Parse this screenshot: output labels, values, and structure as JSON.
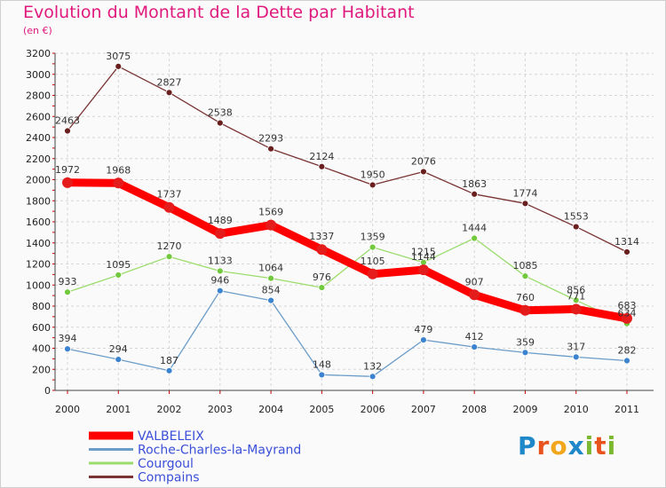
{
  "header": {
    "title": "Evolution du Montant de la Dette par Habitant",
    "subtitle": "(en €)"
  },
  "brand": {
    "text": "Proxiti",
    "letters": [
      "P",
      "r",
      "o",
      "x",
      "i",
      "t",
      "i"
    ],
    "colors": [
      "#1e88c8",
      "#e8531d",
      "#f2a61c",
      "#1e88c8",
      "#7cb82f",
      "#e8531d",
      "#7cb82f"
    ]
  },
  "chart_data": {
    "type": "line",
    "title": "Evolution du Montant de la Dette par Habitant",
    "subtitle": "(en €)",
    "xlabel": "",
    "ylabel": "",
    "x": [
      "2000",
      "2001",
      "2002",
      "2003",
      "2004",
      "2005",
      "2006",
      "2007",
      "2008",
      "2009",
      "2010",
      "2011"
    ],
    "ylim": [
      0,
      3200
    ],
    "yticks": [
      0,
      200,
      400,
      600,
      800,
      1000,
      1200,
      1400,
      1600,
      1800,
      2000,
      2200,
      2400,
      2600,
      2800,
      3000,
      3200
    ],
    "grid": true,
    "legend_position": "bottom-left",
    "series": [
      {
        "name": "VALBELEIX",
        "color": "#ff0000",
        "marker": "#e51c1c",
        "width": 9,
        "radius": 6,
        "values": [
          1972,
          1968,
          1737,
          1489,
          1569,
          1337,
          1105,
          1144,
          907,
          760,
          771,
          683
        ]
      },
      {
        "name": "Roche-Charles-la-Mayrand",
        "color": "#6b9cc8",
        "marker": "#3b83cf",
        "width": 1.3,
        "radius": 3.5,
        "values": [
          394,
          294,
          187,
          946,
          854,
          148,
          132,
          479,
          412,
          359,
          317,
          282
        ]
      },
      {
        "name": "Courgoul",
        "color": "#9bdc6c",
        "marker": "#73c93d",
        "width": 1.3,
        "radius": 3.5,
        "values": [
          933,
          1095,
          1270,
          1133,
          1064,
          976,
          1359,
          1215,
          1444,
          1085,
          856,
          634
        ]
      },
      {
        "name": "Compains",
        "color": "#7a3434",
        "marker": "#6a1f1f",
        "width": 1.3,
        "radius": 3.5,
        "values": [
          2463,
          3075,
          2827,
          2538,
          2293,
          2124,
          1950,
          2076,
          1863,
          1774,
          1553,
          1314
        ]
      }
    ],
    "data_labels": [
      [
        "1972",
        "1968",
        "1737",
        "1489",
        "1569",
        "1337",
        "1105",
        "1144",
        "907",
        "760",
        "771",
        "683"
      ],
      [
        "394",
        "294",
        "187",
        "946",
        "854",
        "148",
        "132",
        "479",
        "412",
        "359",
        "317",
        "282"
      ],
      [
        "933",
        "1095",
        "1270",
        "1133",
        "1064",
        "976",
        "1359",
        "1215",
        "1444",
        "1085",
        "856",
        "634"
      ],
      [
        "2463",
        "3075",
        "2827",
        "2538",
        "2293",
        "2124",
        "1950",
        "2076",
        "1863",
        "1774",
        "1553",
        "1314"
      ]
    ]
  }
}
